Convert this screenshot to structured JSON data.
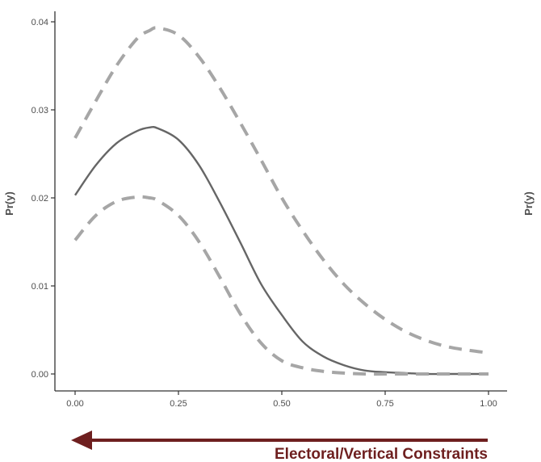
{
  "chart_data": {
    "type": "line",
    "title": "",
    "xlabel": "",
    "ylabel": "Pr(y)",
    "right_panel_ylabel": "Pr(y)",
    "xlim": [
      0,
      1
    ],
    "ylim": [
      0,
      0.04
    ],
    "x_ticks": [
      "0.00",
      "0.25",
      "0.50",
      "0.75",
      "1.00"
    ],
    "y_ticks": [
      "0.00",
      "0.01",
      "0.02",
      "0.03",
      "0.04"
    ],
    "grid": false,
    "legend": "none",
    "x": [
      0.0,
      0.05,
      0.1,
      0.15,
      0.18,
      0.2,
      0.25,
      0.3,
      0.35,
      0.4,
      0.45,
      0.5,
      0.55,
      0.6,
      0.65,
      0.7,
      0.75,
      0.8,
      0.85,
      0.9,
      0.95,
      1.0
    ],
    "series": [
      {
        "role": "estimate",
        "style": "solid",
        "color": "#666666",
        "values": [
          0.0203,
          0.0237,
          0.0262,
          0.0276,
          0.028,
          0.0279,
          0.0266,
          0.0237,
          0.0195,
          0.0149,
          0.0102,
          0.0067,
          0.0037,
          0.002,
          0.001,
          0.0004,
          0.0002,
          0.0001,
          0.0,
          0.0,
          0.0,
          0.0
        ]
      },
      {
        "role": "upper-bound",
        "style": "dashed",
        "color": "#a6a6a6",
        "values": [
          0.0268,
          0.031,
          0.035,
          0.0381,
          0.039,
          0.0393,
          0.0385,
          0.036,
          0.0325,
          0.0285,
          0.0243,
          0.02,
          0.0163,
          0.013,
          0.0102,
          0.008,
          0.0062,
          0.0048,
          0.0038,
          0.0031,
          0.0027,
          0.0024
        ]
      },
      {
        "role": "lower-bound",
        "style": "dashed",
        "color": "#a6a6a6",
        "values": [
          0.0152,
          0.018,
          0.0196,
          0.0201,
          0.02,
          0.0197,
          0.018,
          0.015,
          0.011,
          0.0068,
          0.0035,
          0.0015,
          0.0007,
          0.0003,
          0.0001,
          0.0,
          0.0,
          0.0,
          0.0,
          0.0,
          0.0,
          0.0
        ]
      }
    ],
    "annotation": {
      "text": "Electoral/Vertical Constraints",
      "arrow_direction": "left",
      "color": "#6e1f1f"
    }
  }
}
